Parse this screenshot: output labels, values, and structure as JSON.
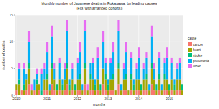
{
  "chart_data": {
    "type": "bar",
    "stacked": true,
    "grid": true,
    "legend": "right",
    "title": "Monthly number of Japanese deaths in Fukagawa, by leading causes",
    "subtitle": "(Fits with arranged cohorts)",
    "x_label": "months",
    "y_label": "number of deaths",
    "legend_title": "cause",
    "categories": [
      "2010",
      null,
      null,
      null,
      null,
      null,
      null,
      null,
      null,
      null,
      null,
      null,
      "2011",
      null,
      null,
      null,
      null,
      null,
      null,
      null,
      null,
      null,
      null,
      null,
      "2012",
      null,
      null,
      null,
      null,
      null,
      null,
      null,
      null,
      null,
      null,
      null,
      "2013",
      null,
      null,
      null,
      null,
      null,
      null,
      null,
      null,
      null,
      null,
      null,
      "2014",
      null,
      null,
      null,
      null,
      null,
      null,
      null,
      null,
      null,
      null,
      null,
      "2015",
      null,
      null,
      null,
      null,
      null
    ],
    "ylim": [
      0,
      15
    ],
    "yticks": [
      0,
      5,
      10,
      15
    ],
    "series": [
      {
        "name": "cancer",
        "color": "#F8766D",
        "values": [
          1,
          0,
          1,
          0,
          1,
          2,
          0,
          1,
          0,
          1,
          0,
          1,
          1,
          0,
          2,
          1,
          0,
          1,
          0,
          1,
          2,
          0,
          1,
          0,
          1,
          1,
          0,
          2,
          0,
          1,
          1,
          0,
          1,
          0,
          2,
          1,
          0,
          1,
          1,
          0,
          2,
          0,
          1,
          1,
          0,
          1,
          0,
          1,
          1,
          0,
          1,
          1,
          0,
          2,
          1,
          0,
          1,
          0,
          1,
          1,
          0,
          1,
          0,
          1,
          1,
          0
        ]
      },
      {
        "name": "heart",
        "color": "#A3A500",
        "values": [
          1,
          2,
          0,
          1,
          2,
          3,
          1,
          0,
          2,
          1,
          0,
          2,
          2,
          1,
          3,
          2,
          1,
          2,
          1,
          2,
          3,
          1,
          2,
          1,
          2,
          2,
          1,
          3,
          1,
          2,
          2,
          1,
          2,
          1,
          3,
          2,
          1,
          2,
          2,
          1,
          3,
          1,
          2,
          2,
          1,
          2,
          1,
          2,
          2,
          1,
          2,
          2,
          1,
          3,
          2,
          1,
          2,
          1,
          2,
          2,
          1,
          2,
          1,
          2,
          2,
          1
        ]
      },
      {
        "name": "stroke",
        "color": "#00BF7D",
        "values": [
          0,
          1,
          0,
          1,
          0,
          1,
          0,
          0,
          1,
          0,
          1,
          0,
          1,
          0,
          1,
          0,
          1,
          0,
          1,
          0,
          1,
          1,
          0,
          1,
          0,
          1,
          0,
          1,
          0,
          1,
          0,
          1,
          0,
          1,
          0,
          1,
          1,
          0,
          1,
          0,
          1,
          0,
          0,
          1,
          0,
          1,
          1,
          0,
          0,
          1,
          0,
          1,
          0,
          1,
          0,
          1,
          1,
          0,
          1,
          0,
          1,
          0,
          1,
          0,
          0,
          1
        ]
      },
      {
        "name": "pneumonia",
        "color": "#00B0F6",
        "values": [
          0,
          2,
          0,
          3,
          1,
          4,
          0,
          2,
          1,
          0,
          3,
          2,
          4,
          1,
          5,
          2,
          0,
          3,
          1,
          2,
          6,
          1,
          2,
          0,
          3,
          4,
          1,
          6,
          0,
          2,
          3,
          1,
          4,
          0,
          5,
          2,
          1,
          3,
          4,
          0,
          6,
          1,
          2,
          4,
          0,
          3,
          1,
          2,
          4,
          0,
          2,
          3,
          1,
          5,
          2,
          0,
          3,
          1,
          2,
          4,
          0,
          3,
          1,
          2,
          3,
          0
        ]
      },
      {
        "name": "other",
        "color": "#E76BF3",
        "values": [
          0,
          1,
          0,
          1,
          0,
          2,
          1,
          0,
          1,
          0,
          1,
          1,
          2,
          0,
          2,
          1,
          0,
          1,
          0,
          1,
          2,
          0,
          1,
          0,
          1,
          2,
          0,
          2,
          1,
          0,
          1,
          0,
          2,
          0,
          2,
          1,
          0,
          1,
          2,
          0,
          2,
          0,
          1,
          2,
          0,
          1,
          0,
          1,
          2,
          0,
          1,
          1,
          0,
          2,
          1,
          0,
          1,
          0,
          1,
          2,
          0,
          1,
          0,
          1,
          1,
          0
        ]
      }
    ]
  }
}
